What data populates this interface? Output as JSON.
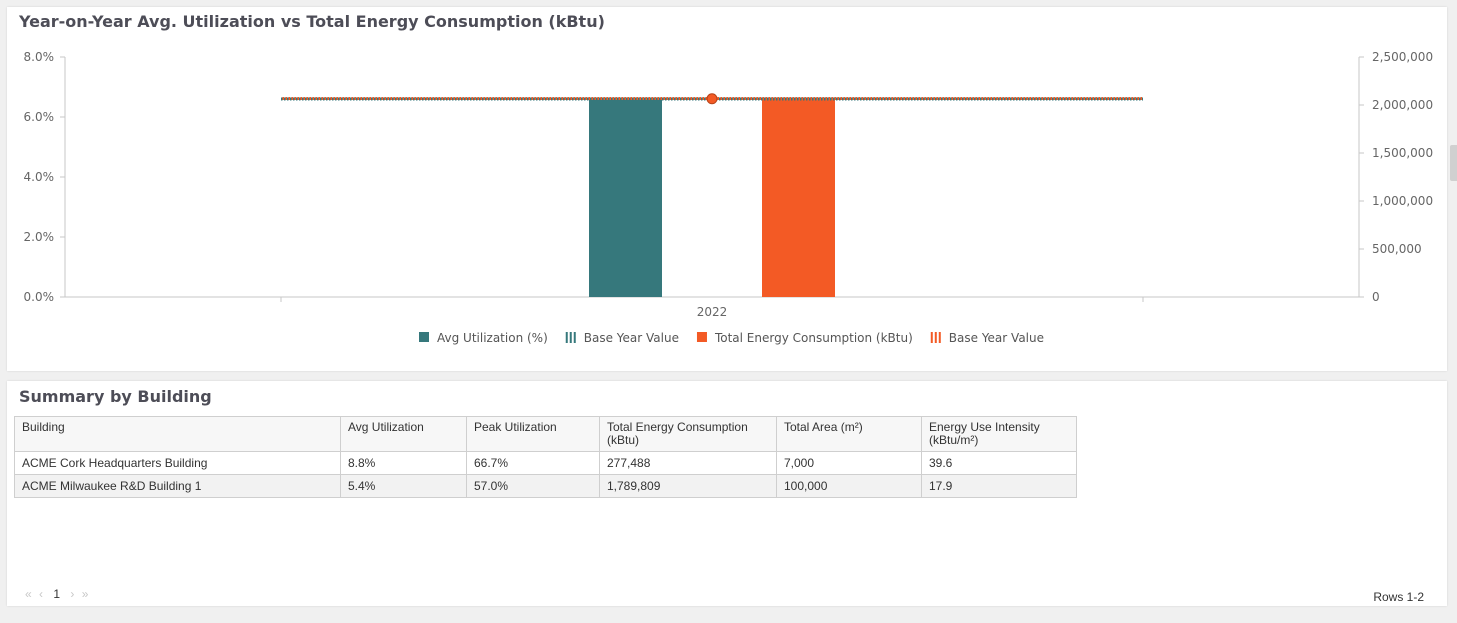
{
  "chart_panel": {
    "title": "Year-on-Year Avg. Utilization vs Total Energy Consumption (kBtu)"
  },
  "chart_data": {
    "type": "bar",
    "categories": [
      "2022"
    ],
    "left_axis": {
      "ticks": [
        "0.0%",
        "2.0%",
        "4.0%",
        "6.0%",
        "8.0%"
      ],
      "ylim": [
        0,
        8
      ]
    },
    "right_axis": {
      "ticks": [
        "0",
        "500,000",
        "1,000,000",
        "1,500,000",
        "2,000,000",
        "2,500,000"
      ],
      "ylim": [
        0,
        2500000
      ]
    },
    "series": [
      {
        "name": "Avg Utilization (%)",
        "type": "bar",
        "axis": "left",
        "values": [
          6.6
        ],
        "color": "#36787c"
      },
      {
        "name": "Base Year Value",
        "type": "line",
        "axis": "left",
        "values": [
          6.6
        ],
        "color": "#36787c",
        "dash": true
      },
      {
        "name": "Total Energy Consumption (kBtu)",
        "type": "bar",
        "axis": "right",
        "values": [
          2067297
        ],
        "color": "#f35a25"
      },
      {
        "name": "Base Year Value",
        "type": "line",
        "axis": "right",
        "values": [
          2067297
        ],
        "color": "#f35a25",
        "dash": true
      }
    ],
    "legend_position": "bottom",
    "grid": false
  },
  "summary": {
    "title": "Summary by Building",
    "columns": [
      "Building",
      "Avg Utilization",
      "Peak Utilization",
      "Total Energy Consumption (kBtu)",
      "Total Area (m²)",
      "Energy Use Intensity (kBtu/m²)"
    ],
    "rows": [
      [
        "ACME Cork Headquarters Building",
        "8.8%",
        "66.7%",
        "277,488",
        "7,000",
        "39.6"
      ],
      [
        "ACME Milwaukee R&D Building 1",
        "5.4%",
        "57.0%",
        "1,789,809",
        "100,000",
        "17.9"
      ]
    ],
    "pager": {
      "first": "«",
      "prev": "‹",
      "current": "1",
      "next": "›",
      "last": "»"
    },
    "rows_info": "Rows 1-2"
  }
}
